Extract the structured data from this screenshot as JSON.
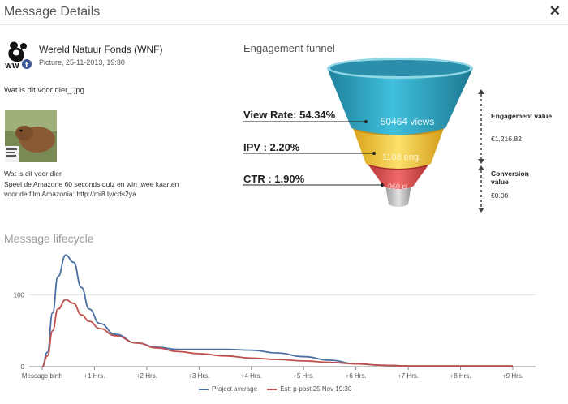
{
  "dialog": {
    "title": "Message Details",
    "close_icon": "close-icon"
  },
  "post": {
    "page_name": "Wereld Natuur Fonds (WNF)",
    "avatar_text": "WWF",
    "meta": "Picture, 25-11-2013, 19:30",
    "attachment_name": "Wat is dit voor dier_.jpg",
    "thumbnail_icon": "capybara-image",
    "text_lines": [
      "Wat is dit voor dier",
      "Speel de Amazone 60 seconds quiz en win twee kaarten",
      "voor de film Amazonia: http://mi8.ly/cds2ya"
    ]
  },
  "funnel": {
    "title": "Engagement funnel",
    "views_label": "50464 views",
    "eng_label": "1108 eng.",
    "cl_label": "960 cl",
    "view_rate": "View Rate: 54.34%",
    "ipv": "IPV : 2.20%",
    "ctr": "CTR : 1.90%",
    "engagement_value_label": "Engagement value",
    "engagement_value": "€1,216.82",
    "conversion_value_label": "Conversion value",
    "conversion_value": "€0.00",
    "colors": {
      "top": "#2aa7c4",
      "mid": "#f2c431",
      "low": "#de4a4a",
      "base": "#bdbdbd"
    }
  },
  "lifecycle": {
    "title": "Message lifecycle",
    "legend": {
      "series_a": "Project average",
      "series_b": "Est: p-post 25 Nov 19:30"
    }
  },
  "chart_data": {
    "type": "line",
    "categories": [
      "Message birth",
      "+1 Hrs.",
      "+2 Hrs.",
      "+3 Hrs.",
      "+4 Hrs.",
      "+5 Hrs.",
      "+6 Hrs.",
      "+7 Hrs.",
      "+8 Hrs.",
      "+9 Hrs."
    ],
    "y_ticks": [
      "0",
      "100"
    ],
    "ylim": [
      0,
      160
    ],
    "xlim": [
      0,
      9
    ],
    "series": [
      {
        "name": "Project average",
        "color": "#4a6fa5",
        "points": [
          [
            0,
            0
          ],
          [
            0.1,
            20
          ],
          [
            0.2,
            75
          ],
          [
            0.3,
            125
          ],
          [
            0.45,
            155
          ],
          [
            0.6,
            145
          ],
          [
            0.75,
            110
          ],
          [
            0.9,
            80
          ],
          [
            1.1,
            60
          ],
          [
            1.4,
            45
          ],
          [
            1.8,
            33
          ],
          [
            2.2,
            27
          ],
          [
            2.6,
            24
          ],
          [
            3.0,
            24
          ],
          [
            3.5,
            24
          ],
          [
            4.0,
            23
          ],
          [
            4.5,
            19
          ],
          [
            5.0,
            14
          ],
          [
            5.5,
            9
          ],
          [
            6.0,
            4
          ],
          [
            6.5,
            2
          ],
          [
            7.0,
            1
          ],
          [
            7.5,
            1
          ],
          [
            8.0,
            1
          ],
          [
            8.5,
            1
          ],
          [
            9.0,
            1
          ]
        ]
      },
      {
        "name": "Est: p-post 25 Nov 19:30",
        "color": "#c0504d",
        "points": [
          [
            0,
            0
          ],
          [
            0.1,
            15
          ],
          [
            0.2,
            50
          ],
          [
            0.3,
            80
          ],
          [
            0.45,
            93
          ],
          [
            0.6,
            88
          ],
          [
            0.75,
            72
          ],
          [
            0.9,
            63
          ],
          [
            1.1,
            53
          ],
          [
            1.4,
            43
          ],
          [
            1.8,
            33
          ],
          [
            2.2,
            26
          ],
          [
            2.6,
            21
          ],
          [
            3.0,
            18
          ],
          [
            3.5,
            15
          ],
          [
            4.0,
            12
          ],
          [
            4.5,
            10
          ],
          [
            5.0,
            8
          ],
          [
            5.5,
            6
          ],
          [
            6.0,
            4
          ],
          [
            6.5,
            2
          ],
          [
            7.0,
            1
          ],
          [
            7.5,
            1
          ],
          [
            8.0,
            1
          ],
          [
            8.5,
            1
          ],
          [
            9.0,
            1
          ]
        ]
      }
    ]
  }
}
